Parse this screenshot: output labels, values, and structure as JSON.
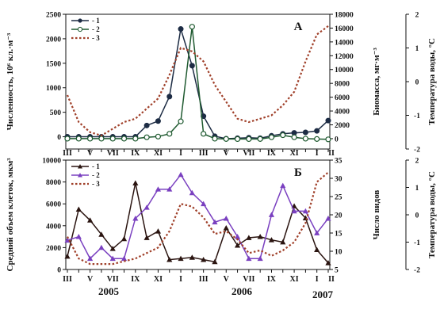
{
  "chart_data": [
    {
      "panel": "A",
      "type": "line",
      "panel_label": "А",
      "months": [
        "III",
        "IV",
        "V",
        "VI",
        "VII",
        "VIII",
        "IX",
        "X",
        "XI",
        "XII",
        "I",
        "II",
        "III",
        "IV",
        "V",
        "VI",
        "VII",
        "VIII",
        "IX",
        "X",
        "XI",
        "XII",
        "I",
        "II"
      ],
      "ylabel_left": "Численность, 10⁶ кл.·м⁻³",
      "ylabel_right1": "Биомасса, мг·м⁻³",
      "ylabel_right2": "Температура воды, °С",
      "ylim_left": [
        -250,
        2500
      ],
      "ylim_right1": [
        -1500,
        18000
      ],
      "ylim_right2": [
        -2,
        2
      ],
      "yticks_left": [
        "0",
        "500",
        "1000",
        "1500",
        "2000",
        "2500"
      ],
      "yticks_right1": [
        "0",
        "2000",
        "4000",
        "6000",
        "8000",
        "10000",
        "12000",
        "14000",
        "16000",
        "18000"
      ],
      "yticks_right2": [
        "-2",
        "-1",
        "0",
        "1",
        "2"
      ],
      "xtick_labels": [
        "III",
        "V",
        "VII",
        "IX",
        "XI",
        "I",
        "III",
        "V",
        "VII",
        "IX",
        "XI",
        "I",
        "II"
      ],
      "series": [
        {
          "name": "- 1",
          "axis": "left",
          "color": "#1d2c44",
          "marker": "circle-filled",
          "values": [
            0,
            0,
            0,
            0,
            0,
            0,
            0,
            230,
            320,
            820,
            2200,
            1450,
            420,
            10,
            -40,
            -30,
            -20,
            -30,
            20,
            60,
            80,
            90,
            120,
            330
          ]
        },
        {
          "name": "- 2",
          "axis": "right1",
          "color": "#1f5a30",
          "marker": "circle-open",
          "values": [
            0,
            0,
            0,
            0,
            0,
            0,
            0,
            200,
            300,
            700,
            2500,
            16200,
            700,
            0,
            -50,
            -60,
            -60,
            -50,
            200,
            500,
            200,
            0,
            -50,
            -100
          ]
        },
        {
          "name": "- 3",
          "axis": "right2",
          "color": "#a0402a",
          "marker": "none",
          "dashed": true,
          "values": [
            -0.4,
            -1.2,
            -1.5,
            -1.6,
            -1.4,
            -1.2,
            -1.1,
            -0.8,
            -0.5,
            0.2,
            1.0,
            0.9,
            0.6,
            -0.1,
            -0.6,
            -1.1,
            -1.2,
            -1.1,
            -1.0,
            -0.7,
            -0.3,
            0.6,
            1.4,
            1.65
          ]
        }
      ],
      "legend_position": "top-left"
    },
    {
      "panel": "B",
      "type": "line",
      "panel_label": "Б",
      "months": [
        "III",
        "IV",
        "V",
        "VI",
        "VII",
        "VIII",
        "IX",
        "X",
        "XI",
        "XII",
        "I",
        "II",
        "III",
        "IV",
        "V",
        "VI",
        "VII",
        "VIII",
        "IX",
        "X",
        "XI",
        "XII",
        "I",
        "II"
      ],
      "ylabel_left": "Средний объем клеток, мкм³",
      "ylabel_right1": "Число видов",
      "ylabel_right2": "Температура воды, °С",
      "ylim_left": [
        0,
        10000
      ],
      "ylim_right1": [
        5,
        35
      ],
      "ylim_right2": [
        -2,
        2
      ],
      "yticks_left": [
        "0",
        "2000",
        "4000",
        "6000",
        "8000",
        "10000"
      ],
      "yticks_right1": [
        "5",
        "10",
        "15",
        "20",
        "25",
        "30",
        "35"
      ],
      "yticks_right2": [
        "-2",
        "-1",
        "0",
        "1",
        "2"
      ],
      "xtick_labels": [
        "III",
        "V",
        "VII",
        "IX",
        "XI",
        "I",
        "III",
        "V",
        "VII",
        "IX",
        "XI",
        "I",
        "II"
      ],
      "years": [
        "2005",
        "2006",
        "2007"
      ],
      "series": [
        {
          "name": "- 1",
          "axis": "left",
          "color": "#2a1410",
          "marker": "triangle-filled",
          "values": [
            1200,
            5500,
            4500,
            3200,
            1900,
            2800,
            7900,
            2900,
            3500,
            900,
            1000,
            1100,
            900,
            700,
            3800,
            2200,
            2900,
            3000,
            2700,
            2500,
            5800,
            4700,
            1800,
            600
          ]
        },
        {
          "name": "- 2",
          "axis": "right1",
          "color": "#7a40c0",
          "marker": "triangle-filled",
          "values": [
            13,
            14,
            8,
            11,
            8,
            8,
            19,
            22,
            27,
            27,
            31,
            26,
            23,
            18,
            19,
            14,
            8,
            8,
            20,
            28,
            21,
            21,
            15,
            19
          ]
        },
        {
          "name": "- 3",
          "axis": "right2",
          "color": "#a0402a",
          "marker": "none",
          "dashed": true,
          "values": [
            -0.8,
            -1.6,
            -1.8,
            -1.8,
            -1.8,
            -1.7,
            -1.6,
            -1.4,
            -1.2,
            -0.6,
            0.4,
            0.3,
            -0.1,
            -0.7,
            -0.6,
            -0.9,
            -1.4,
            -1.3,
            -1.5,
            -1.3,
            -1.0,
            -0.3,
            1.2,
            1.55
          ]
        }
      ],
      "legend_position": "top-left"
    }
  ]
}
